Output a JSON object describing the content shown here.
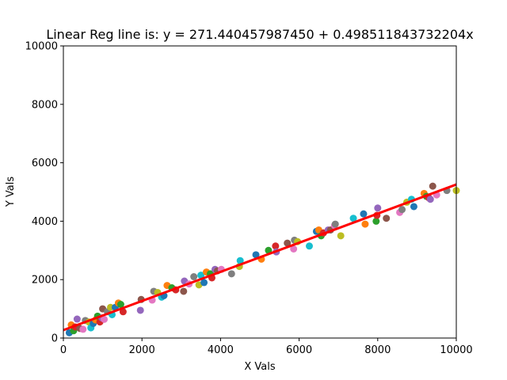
{
  "chart_data": {
    "type": "scatter",
    "title": "Linear Reg line is: y = 271.440457987450 + 0.498511843732204x",
    "xlabel": "X Vals",
    "ylabel": "Y Vals",
    "xlim": [
      0,
      10000
    ],
    "ylim": [
      0,
      10000
    ],
    "x_ticks": [
      0,
      2000,
      4000,
      6000,
      8000,
      10000
    ],
    "y_ticks": [
      0,
      2000,
      4000,
      6000,
      8000,
      10000
    ],
    "grid": false,
    "regression_line": {
      "intercept": 271.44045798745,
      "slope": 0.498511843732204,
      "x_range": [
        0,
        10000
      ],
      "color": "#ff0000"
    },
    "palette": [
      "#1f77b4",
      "#ff7f0e",
      "#2ca02c",
      "#d62728",
      "#9467bd",
      "#8c564b",
      "#e377c2",
      "#7f7f7f",
      "#bcbd22",
      "#17becf"
    ],
    "points": [
      [
        150,
        180
      ],
      [
        200,
        450
      ],
      [
        260,
        250
      ],
      [
        300,
        380
      ],
      [
        350,
        650
      ],
      [
        420,
        330
      ],
      [
        500,
        300
      ],
      [
        560,
        600
      ],
      [
        650,
        550
      ],
      [
        700,
        350
      ],
      [
        760,
        500
      ],
      [
        820,
        620
      ],
      [
        870,
        750
      ],
      [
        930,
        550
      ],
      [
        980,
        690
      ],
      [
        1000,
        1000
      ],
      [
        1040,
        640
      ],
      [
        1120,
        900
      ],
      [
        1200,
        1050
      ],
      [
        1240,
        800
      ],
      [
        1320,
        1050
      ],
      [
        1400,
        1200
      ],
      [
        1460,
        1150
      ],
      [
        1520,
        900
      ],
      [
        1960,
        950
      ],
      [
        1980,
        1320
      ],
      [
        2260,
        1300
      ],
      [
        2300,
        1600
      ],
      [
        2400,
        1560
      ],
      [
        2500,
        1400
      ],
      [
        2560,
        1450
      ],
      [
        2640,
        1800
      ],
      [
        2760,
        1720
      ],
      [
        2860,
        1650
      ],
      [
        3080,
        1950
      ],
      [
        3060,
        1600
      ],
      [
        3200,
        1850
      ],
      [
        3320,
        2100
      ],
      [
        3450,
        1820
      ],
      [
        3500,
        2150
      ],
      [
        3580,
        1900
      ],
      [
        3640,
        2260
      ],
      [
        3740,
        2200
      ],
      [
        3780,
        2060
      ],
      [
        3860,
        2350
      ],
      [
        3920,
        2300
      ],
      [
        4020,
        2350
      ],
      [
        4280,
        2200
      ],
      [
        4480,
        2450
      ],
      [
        4500,
        2650
      ],
      [
        4900,
        2850
      ],
      [
        5040,
        2700
      ],
      [
        5220,
        3000
      ],
      [
        5400,
        3150
      ],
      [
        5420,
        2950
      ],
      [
        5700,
        3250
      ],
      [
        5860,
        3050
      ],
      [
        5880,
        3350
      ],
      [
        5960,
        3300
      ],
      [
        6260,
        3150
      ],
      [
        6440,
        3650
      ],
      [
        6500,
        3700
      ],
      [
        6560,
        3500
      ],
      [
        6620,
        3600
      ],
      [
        6740,
        3700
      ],
      [
        6800,
        3700
      ],
      [
        6900,
        3850
      ],
      [
        6920,
        3900
      ],
      [
        7060,
        3500
      ],
      [
        7380,
        4100
      ],
      [
        7640,
        4250
      ],
      [
        7680,
        3900
      ],
      [
        7960,
        4000
      ],
      [
        7980,
        4200
      ],
      [
        8000,
        4450
      ],
      [
        8220,
        4100
      ],
      [
        8560,
        4300
      ],
      [
        8620,
        4400
      ],
      [
        8740,
        4650
      ],
      [
        8860,
        4750
      ],
      [
        8920,
        4500
      ],
      [
        9180,
        4950
      ],
      [
        9240,
        4850
      ],
      [
        9300,
        4800
      ],
      [
        9340,
        4750
      ],
      [
        9400,
        5200
      ],
      [
        9500,
        4900
      ],
      [
        9760,
        5050
      ],
      [
        10000,
        5050
      ]
    ]
  }
}
